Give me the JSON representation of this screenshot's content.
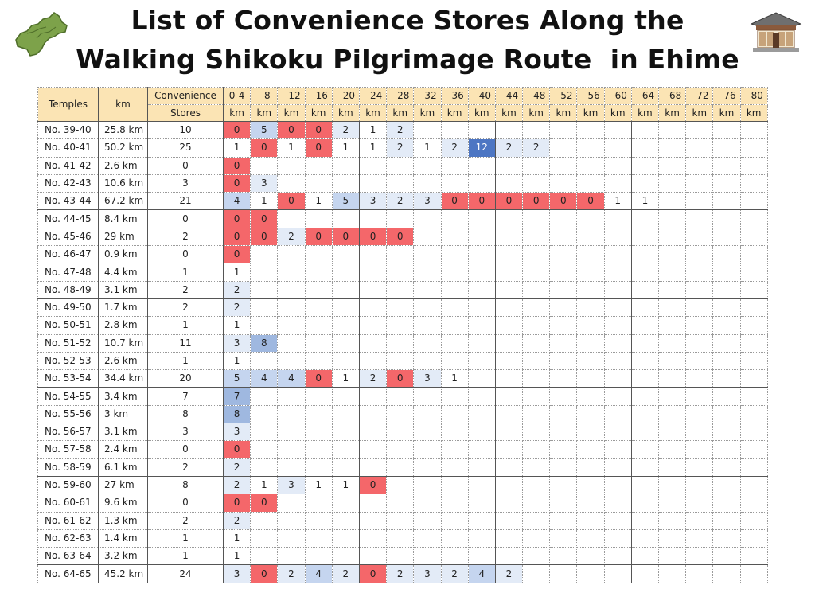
{
  "title": {
    "line1": "List of Convenience Stores Along the",
    "line2": "Walking Shikoku Pilgrimage Route  in Ehime"
  },
  "icons": {
    "left": "shikoku-map-icon",
    "right": "temple-icon"
  },
  "colors": {
    "zero": "#f4676a",
    "light": "#e3ebf7",
    "mid": "#c5d5ef",
    "strong": "#9fb8e0",
    "max": "#4d76c3",
    "header": "#fbe4b4"
  },
  "table": {
    "header": {
      "temples": "Temples",
      "km": "km",
      "stores_top": "Convenience",
      "stores_bottom": "Stores",
      "segments": [
        {
          "top": "0-4",
          "bottom": "km"
        },
        {
          "top": "- 8",
          "bottom": "km"
        },
        {
          "top": "- 12",
          "bottom": "km"
        },
        {
          "top": "- 16",
          "bottom": "km"
        },
        {
          "top": "- 20",
          "bottom": "km"
        },
        {
          "top": "- 24",
          "bottom": "km"
        },
        {
          "top": "- 28",
          "bottom": "km"
        },
        {
          "top": "- 32",
          "bottom": "km"
        },
        {
          "top": "- 36",
          "bottom": "km"
        },
        {
          "top": "- 40",
          "bottom": "km"
        },
        {
          "top": "- 44",
          "bottom": "km"
        },
        {
          "top": "- 48",
          "bottom": "km"
        },
        {
          "top": "- 52",
          "bottom": "km"
        },
        {
          "top": "- 56",
          "bottom": "km"
        },
        {
          "top": "- 60",
          "bottom": "km"
        },
        {
          "top": "- 64",
          "bottom": "km"
        },
        {
          "top": "- 68",
          "bottom": "km"
        },
        {
          "top": "- 72",
          "bottom": "km"
        },
        {
          "top": "- 76",
          "bottom": "km"
        },
        {
          "top": "- 80",
          "bottom": "km"
        }
      ]
    },
    "rows": [
      {
        "temples": "No. 39-40",
        "km": "25.8 km",
        "stores": "10",
        "segs": [
          "0",
          "5",
          "0",
          "0",
          "2",
          "1",
          "2"
        ]
      },
      {
        "temples": "No. 40-41",
        "km": "50.2 km",
        "stores": "25",
        "segs": [
          "1",
          "0",
          "1",
          "0",
          "1",
          "1",
          "2",
          "1",
          "2",
          "12",
          "2",
          "2"
        ]
      },
      {
        "temples": "No. 41-42",
        "km": "2.6 km",
        "stores": "0",
        "segs": [
          "0"
        ]
      },
      {
        "temples": "No. 42-43",
        "km": "10.6 km",
        "stores": "3",
        "segs": [
          "0",
          "3"
        ]
      },
      {
        "temples": "No. 43-44",
        "km": "67.2 km",
        "stores": "21",
        "segs": [
          "4",
          "1",
          "0",
          "1",
          "5",
          "3",
          "2",
          "3",
          "0",
          "0",
          "0",
          "0",
          "0",
          "0",
          "1",
          "1"
        ]
      },
      {
        "temples": "No. 44-45",
        "km": "8.4 km",
        "stores": "0",
        "segs": [
          "0",
          "0"
        ]
      },
      {
        "temples": "No. 45-46",
        "km": "29 km",
        "stores": "2",
        "segs": [
          "0",
          "0",
          "2",
          "0",
          "0",
          "0",
          "0"
        ]
      },
      {
        "temples": "No. 46-47",
        "km": "0.9 km",
        "stores": "0",
        "segs": [
          "0"
        ]
      },
      {
        "temples": "No. 47-48",
        "km": "4.4 km",
        "stores": "1",
        "segs": [
          "1"
        ]
      },
      {
        "temples": "No. 48-49",
        "km": "3.1 km",
        "stores": "2",
        "segs": [
          "2"
        ]
      },
      {
        "temples": "No. 49-50",
        "km": "1.7 km",
        "stores": "2",
        "segs": [
          "2"
        ]
      },
      {
        "temples": "No. 50-51",
        "km": "2.8 km",
        "stores": "1",
        "segs": [
          "1"
        ]
      },
      {
        "temples": "No. 51-52",
        "km": "10.7 km",
        "stores": "11",
        "segs": [
          "3",
          "8"
        ]
      },
      {
        "temples": "No. 52-53",
        "km": "2.6 km",
        "stores": "1",
        "segs": [
          "1"
        ]
      },
      {
        "temples": "No. 53-54",
        "km": "34.4 km",
        "stores": "20",
        "segs": [
          "5",
          "4",
          "4",
          "0",
          "1",
          "2",
          "0",
          "3",
          "1"
        ]
      },
      {
        "temples": "No. 54-55",
        "km": "3.4 km",
        "stores": "7",
        "segs": [
          "7"
        ]
      },
      {
        "temples": "No. 55-56",
        "km": "3 km",
        "stores": "8",
        "segs": [
          "8"
        ]
      },
      {
        "temples": "No. 56-57",
        "km": "3.1 km",
        "stores": "3",
        "segs": [
          "3"
        ]
      },
      {
        "temples": "No. 57-58",
        "km": "2.4 km",
        "stores": "0",
        "segs": [
          "0"
        ]
      },
      {
        "temples": "No. 58-59",
        "km": "6.1 km",
        "stores": "2",
        "segs": [
          "2"
        ]
      },
      {
        "temples": "No. 59-60",
        "km": "27 km",
        "stores": "8",
        "segs": [
          "2",
          "1",
          "3",
          "1",
          "1",
          "0"
        ]
      },
      {
        "temples": "No. 60-61",
        "km": "9.6 km",
        "stores": "0",
        "segs": [
          "0",
          "0"
        ]
      },
      {
        "temples": "No. 61-62",
        "km": "1.3 km",
        "stores": "2",
        "segs": [
          "2"
        ]
      },
      {
        "temples": "No. 62-63",
        "km": "1.4 km",
        "stores": "1",
        "segs": [
          "1"
        ]
      },
      {
        "temples": "No. 63-64",
        "km": "3.2 km",
        "stores": "1",
        "segs": [
          "1"
        ]
      },
      {
        "temples": "No. 64-65",
        "km": "45.2 km",
        "stores": "24",
        "segs": [
          "3",
          "0",
          "2",
          "4",
          "2",
          "0",
          "2",
          "3",
          "2",
          "4",
          "2"
        ]
      }
    ]
  }
}
